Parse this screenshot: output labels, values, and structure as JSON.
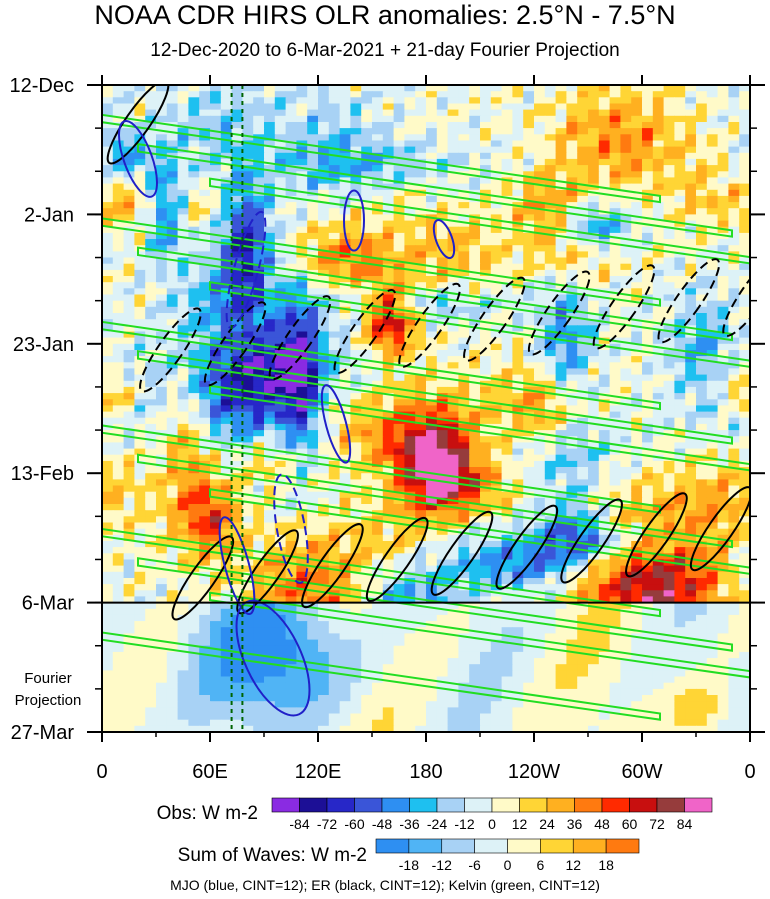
{
  "chart_data": {
    "type": "heatmap",
    "title": "NOAA CDR HIRS OLR anomalies: 2.5°N - 7.5°N",
    "subtitle": "12-Dec-2020 to 6-Mar-2021 + 21-day Fourier Projection",
    "x_ticks": [
      "0",
      "60E",
      "120E",
      "180",
      "120W",
      "60W",
      "0"
    ],
    "x_range_deg_east": [
      0,
      360
    ],
    "y_ticks": [
      "12-Dec",
      "2-Jan",
      "23-Jan",
      "13-Feb",
      "6-Mar",
      "27-Mar"
    ],
    "y_range_days_from_12Dec": [
      0,
      105
    ],
    "projection_label": "Fourier\nProjection",
    "observation_end": "6-Mar",
    "reference_lines_deg_east": [
      72,
      78
    ],
    "obs_colorbar": {
      "label": "Obs: W m-2",
      "ticks": [
        "-84",
        "-72",
        "-60",
        "-48",
        "-36",
        "-24",
        "-12",
        "0",
        "12",
        "24",
        "36",
        "48",
        "60",
        "72",
        "84"
      ],
      "colors": [
        "#8a2be2",
        "#1c0f96",
        "#2727c8",
        "#3a55d8",
        "#2e8ff2",
        "#1ec0f0",
        "#a8d2f5",
        "#ddf2f7",
        "#fffac8",
        "#ffd535",
        "#ffb020",
        "#ff7a10",
        "#ff2a00",
        "#c80f0f",
        "#963c3c",
        "#f064c8"
      ]
    },
    "waves_colorbar": {
      "label": "Sum of Waves: W m-2",
      "ticks": [
        "-18",
        "-12",
        "-6",
        "0",
        "6",
        "12",
        "18"
      ],
      "colors": [
        "#2e8ff2",
        "#50b4f5",
        "#a8d2f5",
        "#ddf2f7",
        "#fffac8",
        "#ffd535",
        "#ffb020",
        "#ff7a10"
      ]
    },
    "footer": "MJO (blue, CINT=12); ER (black, CINT=12); Kelvin (green, CINT=12)",
    "series": [
      {
        "name": "MJO",
        "color": "#2020c8"
      },
      {
        "name": "ER",
        "color": "#000000"
      },
      {
        "name": "Kelvin",
        "color": "#22dd22"
      }
    ]
  }
}
